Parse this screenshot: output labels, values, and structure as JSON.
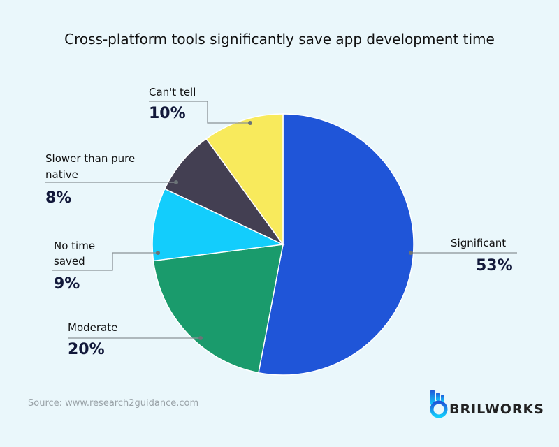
{
  "chart_data": {
    "type": "pie",
    "title": "Cross-platform tools significantly save app development time",
    "slices": [
      {
        "label": "Significant",
        "value": 53,
        "display": "53%",
        "color": "#1f55d8"
      },
      {
        "label": "Moderate",
        "value": 20,
        "display": "20%",
        "color": "#1a9b6c"
      },
      {
        "label": "No time saved",
        "value": 9,
        "display": "9%",
        "color": "#13cdfc"
      },
      {
        "label": "Slower  than pure native",
        "value": 8,
        "display": "8%",
        "color": "#433f52"
      },
      {
        "label": "Can't tell",
        "value": 10,
        "display": "10%",
        "color": "#f8ea5c"
      }
    ],
    "start_angle": "top",
    "direction": "clockwise"
  },
  "labels": {
    "s0a": "Significant",
    "s1a": "Moderate",
    "s2a": "No time",
    "s2b": "saved",
    "s3a": "Slower  than pure",
    "s3b": "native",
    "s4a": "Can't tell"
  },
  "source": "Source: www.research2guidance.com",
  "logo": {
    "text": "BRILWORKS"
  }
}
